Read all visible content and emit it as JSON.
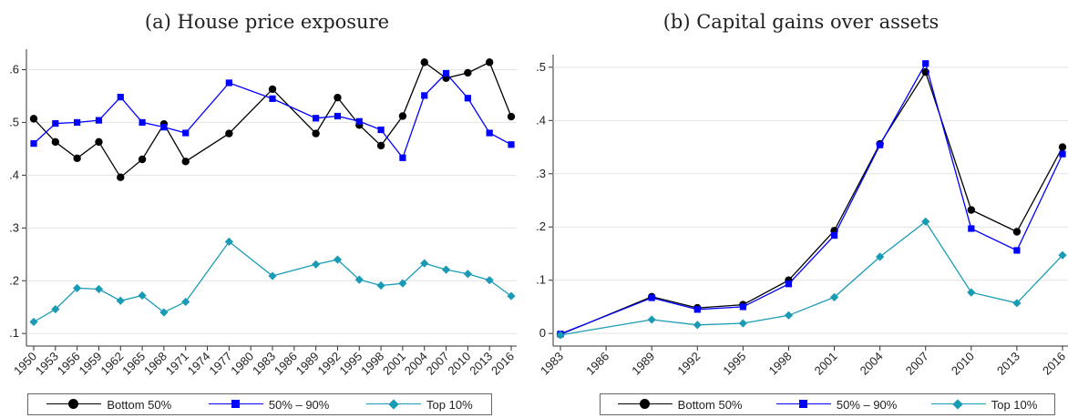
{
  "colors": {
    "bottom": "#000000",
    "mid": "#0000ff",
    "top": "#1a9bb5"
  },
  "legend": {
    "bottom": "Bottom 50%",
    "mid": "50% – 90%",
    "top": "Top 10%"
  },
  "chart_data": [
    {
      "type": "line",
      "title": "(a) House price exposure",
      "x": [
        1950,
        1953,
        1956,
        1959,
        1962,
        1965,
        1968,
        1971,
        1977,
        1983,
        1989,
        1992,
        1995,
        1998,
        2001,
        2004,
        2007,
        2010,
        2013,
        2016
      ],
      "xticks": [
        "1950",
        "1953",
        "1956",
        "1959",
        "1962",
        "1965",
        "1968",
        "1971",
        "1974",
        "1977",
        "1980",
        "1983",
        "1986",
        "1989",
        "1992",
        "1995",
        "1998",
        "2001",
        "2004",
        "2007",
        "2010",
        "2013",
        "2016"
      ],
      "yticks": [
        ".1",
        ".2",
        ".3",
        ".4",
        ".5",
        ".6"
      ],
      "ylim": [
        0.09,
        0.625
      ],
      "series": [
        {
          "name": "Bottom 50%",
          "values": [
            0.507,
            0.463,
            0.432,
            0.463,
            0.396,
            0.43,
            0.497,
            0.426,
            0.479,
            0.563,
            0.479,
            0.547,
            0.495,
            0.456,
            0.512,
            0.614,
            0.584,
            0.594,
            0.614,
            0.511
          ]
        },
        {
          "name": "50% – 90%",
          "values": [
            0.46,
            0.498,
            0.5,
            0.504,
            0.548,
            0.5,
            0.491,
            0.48,
            0.575,
            0.545,
            0.508,
            0.512,
            0.502,
            0.486,
            0.433,
            0.551,
            0.593,
            0.546,
            0.48,
            0.458
          ]
        },
        {
          "name": "Top 10%",
          "values": [
            0.122,
            0.146,
            0.186,
            0.184,
            0.162,
            0.172,
            0.14,
            0.16,
            0.274,
            0.209,
            0.231,
            0.24,
            0.202,
            0.191,
            0.195,
            0.233,
            0.221,
            0.213,
            0.201,
            0.171
          ]
        }
      ]
    },
    {
      "type": "line",
      "title": "(b) Capital gains over assets",
      "x": [
        1983,
        1989,
        1992,
        1995,
        1998,
        2001,
        2004,
        2007,
        2010,
        2013,
        2016
      ],
      "xticks": [
        "1983",
        "1986",
        "1989",
        "1992",
        "1995",
        "1998",
        "2001",
        "2004",
        "2007",
        "2010",
        "2013",
        "2016"
      ],
      "yticks": [
        "0",
        ".1",
        ".2",
        ".3",
        ".4",
        ".5"
      ],
      "ylim": [
        -0.01,
        0.51
      ],
      "series": [
        {
          "name": "Bottom 50%",
          "values": [
            -0.002,
            0.069,
            0.048,
            0.054,
            0.1,
            0.193,
            0.356,
            0.491,
            0.232,
            0.191,
            0.35
          ]
        },
        {
          "name": "50% – 90%",
          "values": [
            -0.001,
            0.067,
            0.045,
            0.05,
            0.093,
            0.184,
            0.354,
            0.507,
            0.197,
            0.156,
            0.337
          ]
        },
        {
          "name": "Top 10%",
          "values": [
            -0.003,
            0.026,
            0.016,
            0.019,
            0.034,
            0.068,
            0.144,
            0.21,
            0.077,
            0.057,
            0.147
          ]
        }
      ]
    }
  ]
}
